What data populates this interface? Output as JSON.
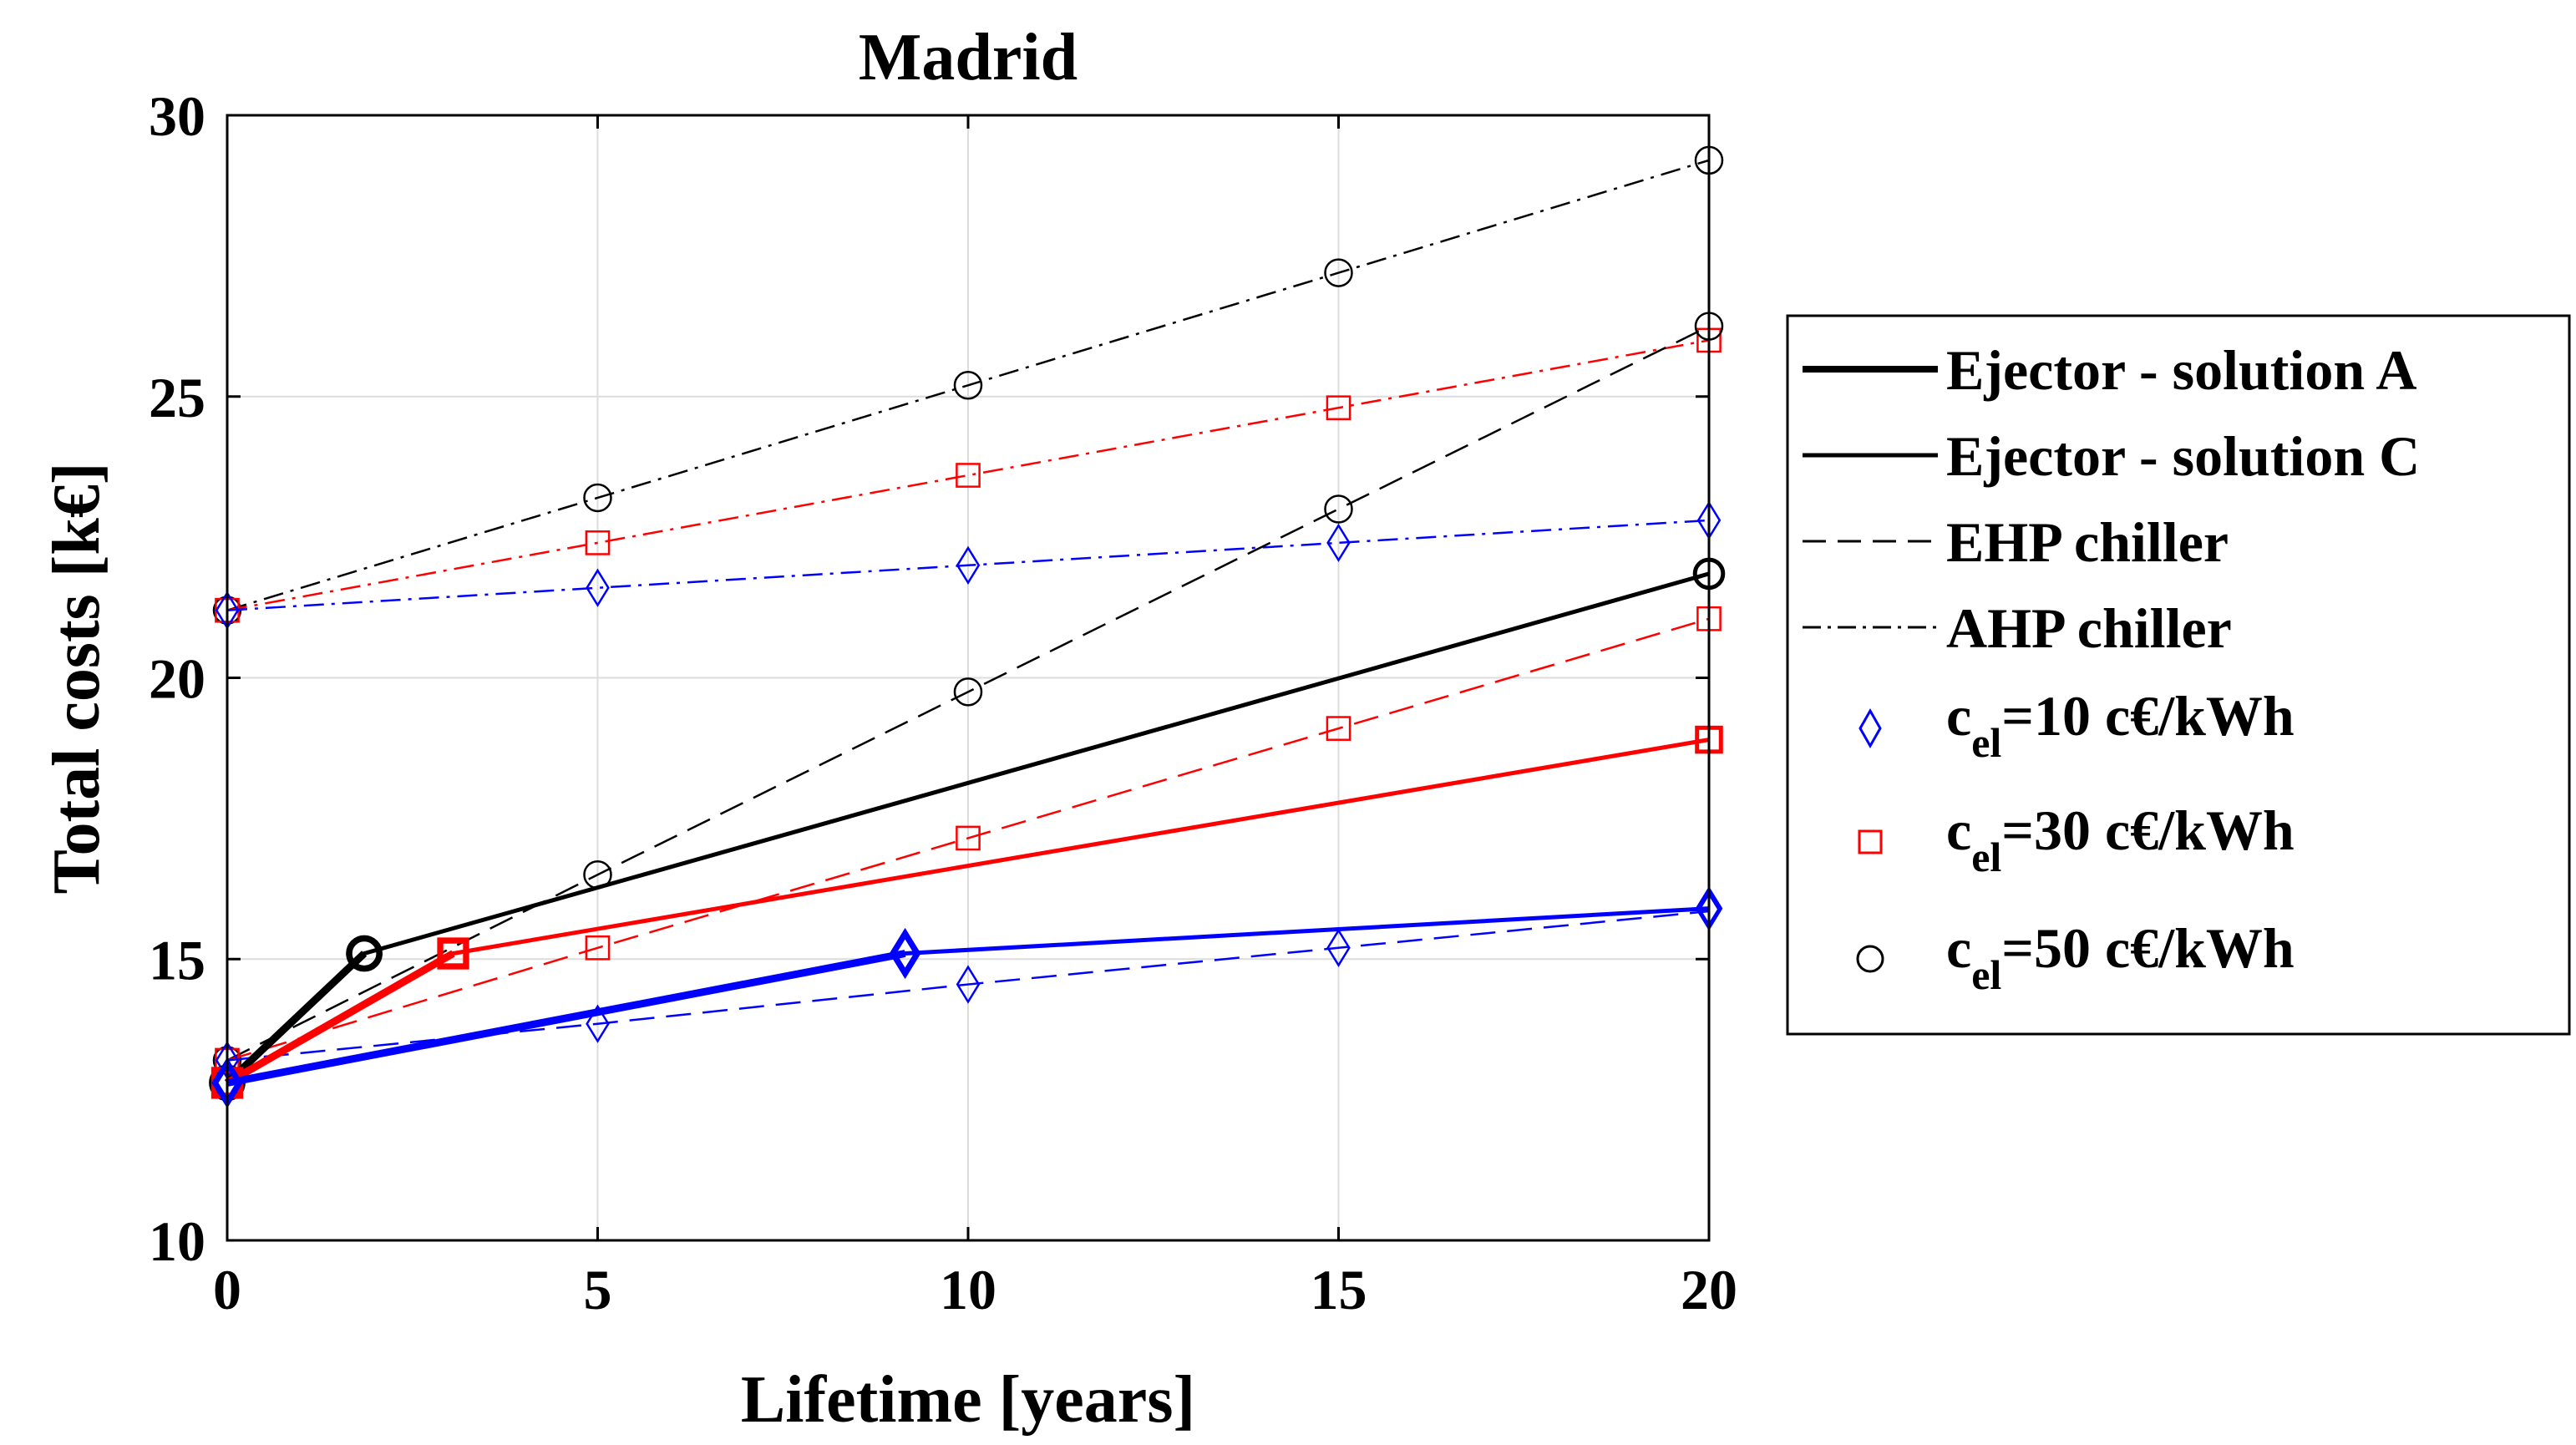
{
  "chart_data": {
    "type": "line",
    "title": "Madrid",
    "xlabel": "Lifetime [years]",
    "ylabel": "Total costs [k€]",
    "xlim": [
      0,
      20
    ],
    "ylim": [
      10,
      30
    ],
    "xticks": [
      0,
      5,
      10,
      15,
      20
    ],
    "yticks": [
      10,
      15,
      20,
      25,
      30
    ],
    "grid": true,
    "legend_position": "right",
    "legend": [
      {
        "label": "Ejector - solution A",
        "style": "thick-solid"
      },
      {
        "label": "Ejector - solution C",
        "style": "solid"
      },
      {
        "label": "EHP chiller",
        "style": "dashed"
      },
      {
        "label": "AHP chiller",
        "style": "dashdot"
      },
      {
        "label_main": "c",
        "label_sub": "el",
        "label_rest": "=10 c€/kWh",
        "marker": "diamond",
        "color": "#0000ff"
      },
      {
        "label_main": "c",
        "label_sub": "el",
        "label_rest": "=30 c€/kWh",
        "marker": "square",
        "color": "#ff0000"
      },
      {
        "label_main": "c",
        "label_sub": "el",
        "label_rest": "=50 c€/kWh",
        "marker": "circle",
        "color": "#000000"
      }
    ],
    "series": [
      {
        "name": "AHP chiller, c_el=50",
        "style": "dashdot",
        "color": "#000000",
        "marker": "circle",
        "x": [
          0,
          5,
          10,
          15,
          20
        ],
        "y": [
          21.2,
          23.2,
          25.2,
          27.2,
          29.2
        ]
      },
      {
        "name": "AHP chiller, c_el=30",
        "style": "dashdot",
        "color": "#ff0000",
        "marker": "square",
        "x": [
          0,
          5,
          10,
          15,
          20
        ],
        "y": [
          21.2,
          22.4,
          23.6,
          24.8,
          26.0
        ]
      },
      {
        "name": "AHP chiller, c_el=10",
        "style": "dashdot",
        "color": "#0000ff",
        "marker": "diamond",
        "x": [
          0,
          5,
          10,
          15,
          20
        ],
        "y": [
          21.2,
          21.6,
          22.0,
          22.4,
          22.8
        ]
      },
      {
        "name": "EHP chiller, c_el=50",
        "style": "dashed",
        "color": "#000000",
        "marker": "circle",
        "x": [
          0,
          5,
          10,
          15,
          20
        ],
        "y": [
          13.2,
          16.5,
          19.75,
          23.0,
          26.25
        ]
      },
      {
        "name": "EHP chiller, c_el=30",
        "style": "dashed",
        "color": "#ff0000",
        "marker": "square",
        "x": [
          0,
          5,
          10,
          15,
          20
        ],
        "y": [
          13.2,
          15.2,
          17.15,
          19.1,
          21.05
        ]
      },
      {
        "name": "EHP chiller, c_el=10",
        "style": "dashed",
        "color": "#0000ff",
        "marker": "diamond",
        "x": [
          0,
          5,
          10,
          15,
          20
        ],
        "y": [
          13.2,
          13.85,
          14.55,
          15.2,
          15.85
        ]
      },
      {
        "name": "Ejector - solution C, c_el=50",
        "style": "solid",
        "color": "#000000",
        "marker": "circle",
        "x": [
          0,
          1.85,
          20
        ],
        "y": [
          12.8,
          15.1,
          21.85
        ]
      },
      {
        "name": "Ejector - solution C, c_el=30",
        "style": "solid",
        "color": "#ff0000",
        "marker": "square",
        "x": [
          0,
          3.05,
          20
        ],
        "y": [
          12.8,
          15.1,
          18.9
        ]
      },
      {
        "name": "Ejector - solution C, c_el=10",
        "style": "solid",
        "color": "#0000ff",
        "marker": "diamond",
        "x": [
          0,
          9.15,
          20
        ],
        "y": [
          12.8,
          15.1,
          15.9
        ]
      },
      {
        "name": "Ejector - solution A, c_el=50",
        "style": "thick-solid",
        "color": "#000000",
        "marker": "circle",
        "x": [
          0,
          1.85
        ],
        "y": [
          12.8,
          15.1
        ]
      },
      {
        "name": "Ejector - solution A, c_el=30",
        "style": "thick-solid",
        "color": "#ff0000",
        "marker": "square",
        "x": [
          0,
          3.05
        ],
        "y": [
          12.8,
          15.1
        ]
      },
      {
        "name": "Ejector - solution A, c_el=10",
        "style": "thick-solid",
        "color": "#0000ff",
        "marker": "diamond",
        "x": [
          0,
          9.15
        ],
        "y": [
          12.8,
          15.1
        ]
      }
    ]
  }
}
